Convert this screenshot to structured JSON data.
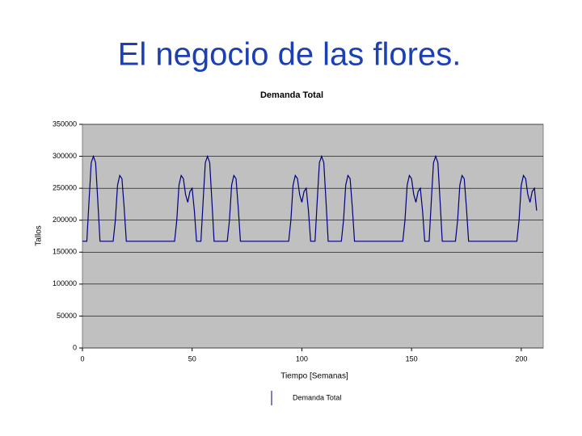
{
  "slide_title": "El negocio de las flores.",
  "chart_data": {
    "type": "line",
    "title": "Demanda Total",
    "x_label": "Tiempo [Semanas]",
    "y_label": "Tallos",
    "x": [
      0,
      1,
      2,
      3,
      4,
      5,
      6,
      7,
      8,
      9,
      10,
      11,
      12,
      13,
      14,
      15,
      16,
      17,
      18,
      19,
      20,
      21,
      22,
      23,
      24,
      25,
      26,
      27,
      28,
      29,
      30,
      31,
      32,
      33,
      34,
      35,
      36,
      37,
      38,
      39,
      40,
      41,
      42,
      43,
      44,
      45,
      46,
      47,
      48,
      49,
      50,
      51,
      52,
      53,
      54,
      55,
      56,
      57,
      58,
      59,
      60,
      61,
      62,
      63,
      64,
      65,
      66,
      67,
      68,
      69,
      70,
      71,
      72,
      73,
      74,
      75,
      76,
      77,
      78,
      79,
      80,
      81,
      82,
      83,
      84,
      85,
      86,
      87,
      88,
      89,
      90,
      91,
      92,
      93,
      94,
      95,
      96,
      97,
      98,
      99,
      100,
      101,
      102,
      103,
      104,
      105,
      106,
      107,
      108,
      109,
      110,
      111,
      112,
      113,
      114,
      115,
      116,
      117,
      118,
      119,
      120,
      121,
      122,
      123,
      124,
      125,
      126,
      127,
      128,
      129,
      130,
      131,
      132,
      133,
      134,
      135,
      136,
      137,
      138,
      139,
      140,
      141,
      142,
      143,
      144,
      145,
      146,
      147,
      148,
      149,
      150,
      151,
      152,
      153,
      154,
      155,
      156,
      157,
      158,
      159,
      160,
      161,
      162,
      163,
      164,
      165,
      166,
      167,
      168,
      169,
      170,
      171,
      172,
      173,
      174,
      175,
      176,
      177,
      178,
      179,
      180,
      181,
      182,
      183,
      184,
      185,
      186,
      187,
      188,
      189,
      190,
      191,
      192,
      193,
      194,
      195,
      196,
      197,
      198,
      199,
      200,
      201,
      202,
      203,
      204,
      205,
      206,
      207
    ],
    "series": [
      {
        "name": "Demanda Total",
        "color": "#000080",
        "values": [
          167000,
          167000,
          167000,
          230000,
          290000,
          300000,
          290000,
          230000,
          167000,
          167000,
          167000,
          167000,
          167000,
          167000,
          167000,
          200000,
          255000,
          270000,
          265000,
          220000,
          167000,
          167000,
          167000,
          167000,
          167000,
          167000,
          167000,
          167000,
          167000,
          167000,
          167000,
          167000,
          167000,
          167000,
          167000,
          167000,
          167000,
          167000,
          167000,
          167000,
          167000,
          167000,
          167000,
          200000,
          255000,
          270000,
          265000,
          240000,
          228000,
          245000,
          250000,
          215000,
          167000,
          167000,
          167000,
          230000,
          290000,
          300000,
          290000,
          230000,
          167000,
          167000,
          167000,
          167000,
          167000,
          167000,
          167000,
          200000,
          255000,
          270000,
          265000,
          220000,
          167000,
          167000,
          167000,
          167000,
          167000,
          167000,
          167000,
          167000,
          167000,
          167000,
          167000,
          167000,
          167000,
          167000,
          167000,
          167000,
          167000,
          167000,
          167000,
          167000,
          167000,
          167000,
          167000,
          200000,
          255000,
          270000,
          265000,
          240000,
          228000,
          245000,
          250000,
          215000,
          167000,
          167000,
          167000,
          230000,
          290000,
          300000,
          290000,
          230000,
          167000,
          167000,
          167000,
          167000,
          167000,
          167000,
          167000,
          200000,
          255000,
          270000,
          265000,
          220000,
          167000,
          167000,
          167000,
          167000,
          167000,
          167000,
          167000,
          167000,
          167000,
          167000,
          167000,
          167000,
          167000,
          167000,
          167000,
          167000,
          167000,
          167000,
          167000,
          167000,
          167000,
          167000,
          167000,
          200000,
          255000,
          270000,
          265000,
          240000,
          228000,
          245000,
          250000,
          215000,
          167000,
          167000,
          167000,
          230000,
          290000,
          300000,
          290000,
          230000,
          167000,
          167000,
          167000,
          167000,
          167000,
          167000,
          167000,
          200000,
          255000,
          270000,
          265000,
          220000,
          167000,
          167000,
          167000,
          167000,
          167000,
          167000,
          167000,
          167000,
          167000,
          167000,
          167000,
          167000,
          167000,
          167000,
          167000,
          167000,
          167000,
          167000,
          167000,
          167000,
          167000,
          167000,
          167000,
          200000,
          255000,
          270000,
          265000,
          240000,
          228000,
          245000,
          250000,
          215000
        ]
      }
    ],
    "xlim": [
      0,
      210
    ],
    "xticks": [
      0,
      50,
      100,
      150,
      200
    ],
    "ylim": [
      0,
      350000
    ],
    "yticks": [
      0,
      50000,
      100000,
      150000,
      200000,
      250000,
      300000,
      350000
    ],
    "grid": true,
    "legend": "bottom",
    "plot_background": "#c0c0c0"
  }
}
